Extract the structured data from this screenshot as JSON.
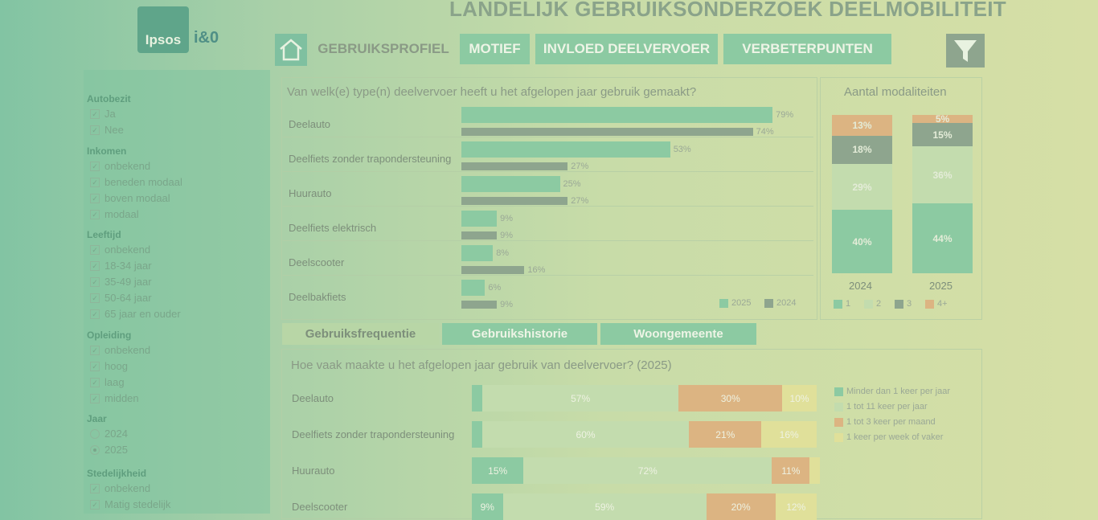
{
  "header": {
    "title": "LANDELIJK GEBRUIKSONDERZOEK DEELMOBILITEIT",
    "logo_ipsos": "Ipsos",
    "logo_io": "i&0",
    "tabs": [
      "GEBRUIKSPROFIEL",
      "MOTIEF",
      "INVLOED DEELVERVOER",
      "VERBETERPUNTEN"
    ]
  },
  "sidebar": {
    "groups": [
      {
        "title": "Autobezit",
        "type": "checkbox",
        "options": [
          "Ja",
          "Nee"
        ]
      },
      {
        "title": "Inkomen",
        "type": "checkbox",
        "options": [
          "onbekend",
          "beneden modaal",
          "boven modaal",
          "modaal"
        ]
      },
      {
        "title": "Leeftijd",
        "type": "checkbox",
        "options": [
          "onbekend",
          "18-34 jaar",
          "35-49 jaar",
          "50-64 jaar",
          "65 jaar en ouder"
        ]
      },
      {
        "title": "Opleiding",
        "type": "checkbox",
        "options": [
          "onbekend",
          "hoog",
          "laag",
          "midden"
        ]
      },
      {
        "title": "Jaar",
        "type": "radio",
        "options": [
          "2024",
          "2025"
        ],
        "selected": "2025"
      },
      {
        "title": "Stedelijkheid",
        "type": "checkbox",
        "options": [
          "onbekend",
          "Matig stedelijk"
        ]
      }
    ]
  },
  "sub_tabs": [
    "Gebruiksfrequentie",
    "Gebruikshistorie",
    "Woongemeente"
  ],
  "colors": {
    "y2025": "#8ccaa2",
    "y2024": "#8ea58e",
    "m1": "#8ccaa2",
    "m2": "#c3dcae",
    "m3": "#8ea58e",
    "m4": "#dcb482",
    "f1": "#8ccaa2",
    "f2": "#c3dcae",
    "f3": "#dcb482",
    "f4": "#e0e09a"
  },
  "chart_data": [
    {
      "type": "bar",
      "title": "Van welk(e) type(n) deelvervoer heeft u het afgelopen jaar gebruik gemaakt?",
      "categories": [
        "Deelauto",
        "Deelfiets zonder trapondersteuning",
        "Huurauto",
        "Deelfiets elektrisch",
        "Deelscooter",
        "Deelbakfiets"
      ],
      "series": [
        {
          "name": "2025",
          "values": [
            79,
            53,
            25,
            9,
            8,
            6
          ]
        },
        {
          "name": "2024",
          "values": [
            74,
            27,
            27,
            9,
            16,
            9
          ]
        }
      ],
      "unit": "%"
    },
    {
      "type": "bar",
      "stacked": true,
      "title": "Aantal modaliteiten",
      "categories": [
        "2024",
        "2025"
      ],
      "series": [
        {
          "name": "1",
          "values": [
            40,
            44
          ]
        },
        {
          "name": "2",
          "values": [
            29,
            36
          ]
        },
        {
          "name": "3",
          "values": [
            18,
            15
          ]
        },
        {
          "name": "4+",
          "values": [
            13,
            5
          ]
        }
      ],
      "unit": "%"
    },
    {
      "type": "bar",
      "stacked": true,
      "orientation": "horizontal",
      "title": "Hoe vaak maakte u het afgelopen jaar gebruik van deelvervoer? (2025)",
      "categories": [
        "Deelauto",
        "Deelfiets zonder trapondersteuning",
        "Huurauto",
        "Deelscooter"
      ],
      "series": [
        {
          "name": "Minder dan 1 keer per jaar",
          "values": [
            3,
            3,
            15,
            9
          ]
        },
        {
          "name": "1 tot 11 keer per jaar",
          "values": [
            57,
            60,
            72,
            59
          ]
        },
        {
          "name": "1 tot 3 keer per maand",
          "values": [
            30,
            21,
            11,
            20
          ]
        },
        {
          "name": "1 keer per week of vaker",
          "values": [
            10,
            16,
            3,
            12
          ]
        }
      ],
      "unit": "%"
    }
  ]
}
